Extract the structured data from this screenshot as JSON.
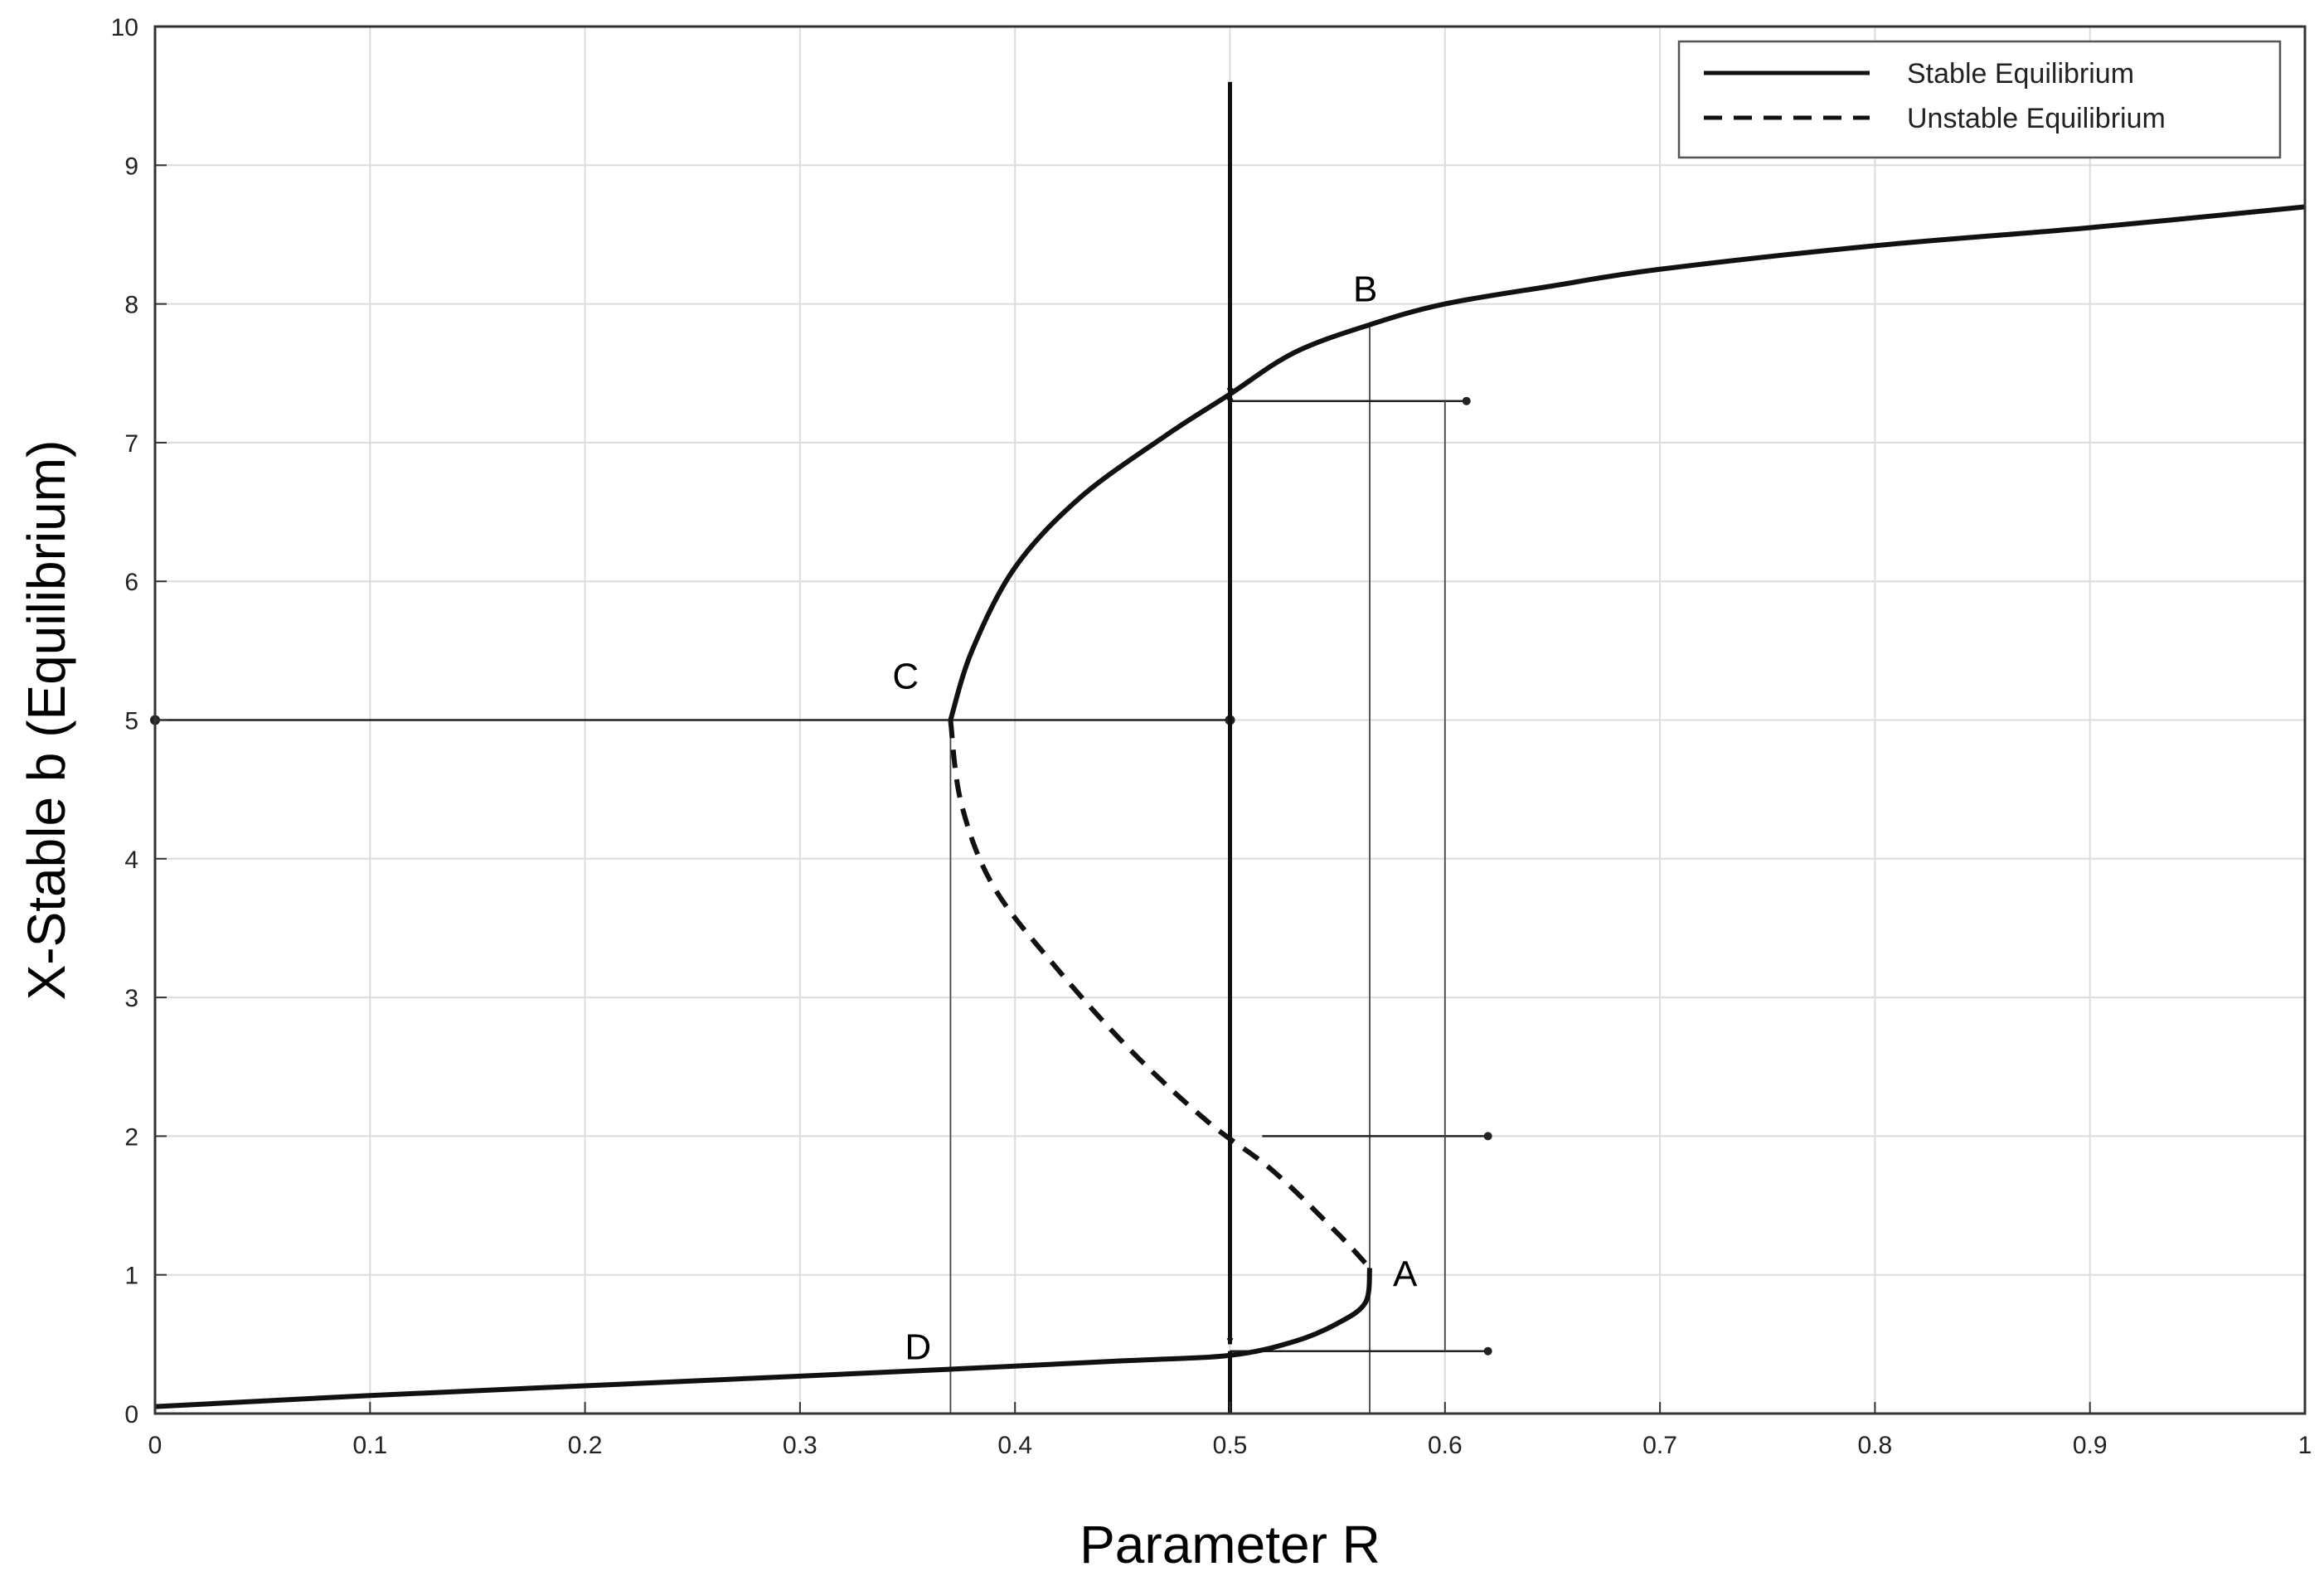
{
  "chart_data": {
    "type": "line",
    "title": "",
    "xlabel": "Parameter R",
    "ylabel": "X-Stable b (Equilibrium)",
    "xlim": [
      0,
      1
    ],
    "ylim": [
      0,
      10
    ],
    "grid": true,
    "x_ticks": [
      "0",
      "0.1",
      "0.2",
      "0.3",
      "0.4",
      "0.5",
      "0.6",
      "0.7",
      "0.8",
      "0.9",
      "1"
    ],
    "y_ticks": [
      "0",
      "1",
      "2",
      "3",
      "4",
      "5",
      "6",
      "7",
      "8",
      "9",
      "10"
    ],
    "legend": {
      "position": "top-right",
      "entries": [
        {
          "label": "Stable Equilibrium",
          "style": "solid"
        },
        {
          "label": "Unstable Equilibrium",
          "style": "dashed"
        }
      ]
    },
    "series": [
      {
        "label": "Stable Equilibrium",
        "style": "solid",
        "segment": "upper",
        "points": [
          [
            0.37,
            5.0
          ],
          [
            0.38,
            5.5
          ],
          [
            0.4,
            6.1
          ],
          [
            0.43,
            6.6
          ],
          [
            0.47,
            7.05
          ],
          [
            0.5,
            7.35
          ],
          [
            0.53,
            7.65
          ],
          [
            0.565,
            7.85
          ],
          [
            0.6,
            8.0
          ],
          [
            0.65,
            8.13
          ],
          [
            0.7,
            8.25
          ],
          [
            0.8,
            8.42
          ],
          [
            0.9,
            8.55
          ],
          [
            1.0,
            8.7
          ]
        ]
      },
      {
        "label": "Unstable Equilibrium",
        "style": "dashed",
        "segment": "middle",
        "points": [
          [
            0.37,
            5.0
          ],
          [
            0.375,
            4.4
          ],
          [
            0.39,
            3.8
          ],
          [
            0.42,
            3.2
          ],
          [
            0.455,
            2.6
          ],
          [
            0.49,
            2.1
          ],
          [
            0.52,
            1.75
          ],
          [
            0.55,
            1.3
          ],
          [
            0.565,
            1.05
          ]
        ]
      },
      {
        "label": "Stable Equilibrium",
        "style": "solid",
        "segment": "lower",
        "points": [
          [
            0.0,
            0.05
          ],
          [
            0.1,
            0.13
          ],
          [
            0.2,
            0.2
          ],
          [
            0.3,
            0.27
          ],
          [
            0.37,
            0.32
          ],
          [
            0.45,
            0.38
          ],
          [
            0.5,
            0.42
          ],
          [
            0.53,
            0.52
          ],
          [
            0.55,
            0.65
          ],
          [
            0.563,
            0.8
          ],
          [
            0.565,
            1.05
          ]
        ]
      }
    ],
    "annotations": {
      "points": [
        {
          "label": "A",
          "x": 0.565,
          "y": 1.05
        },
        {
          "label": "B",
          "x": 0.565,
          "y": 7.85
        },
        {
          "label": "C",
          "x": 0.37,
          "y": 5.0
        },
        {
          "label": "D",
          "x": 0.37,
          "y": 0.32
        }
      ],
      "reference_lines": [
        {
          "kind": "hline",
          "y": 5.0,
          "x_from": 0.0,
          "x_to": 0.5
        },
        {
          "kind": "vline",
          "x": 0.37,
          "y_from": 0.0,
          "y_to": 5.0
        },
        {
          "kind": "vline",
          "x": 0.565,
          "y_from": 0.0,
          "y_to": 7.85
        },
        {
          "kind": "hline",
          "y": 7.3,
          "x_from": 0.5,
          "x_to": 0.61
        },
        {
          "kind": "hline",
          "y": 2.0,
          "x_from": 0.515,
          "x_to": 0.62
        },
        {
          "kind": "hline",
          "y": 0.45,
          "x_from": 0.5,
          "x_to": 0.62
        },
        {
          "kind": "vline",
          "x": 0.6,
          "y_from": 0.45,
          "y_to": 7.3
        }
      ],
      "arrows": [
        {
          "x": 0.5,
          "y_from": 9.6,
          "y_to": 7.35
        },
        {
          "x": 0.5,
          "y_from": 5.0,
          "y_to": 7.35
        },
        {
          "x": 0.5,
          "y_from": 5.0,
          "y_to": 0.5
        },
        {
          "x": 0.5,
          "y_from": 0.0,
          "y_to": 0.45
        }
      ]
    }
  }
}
